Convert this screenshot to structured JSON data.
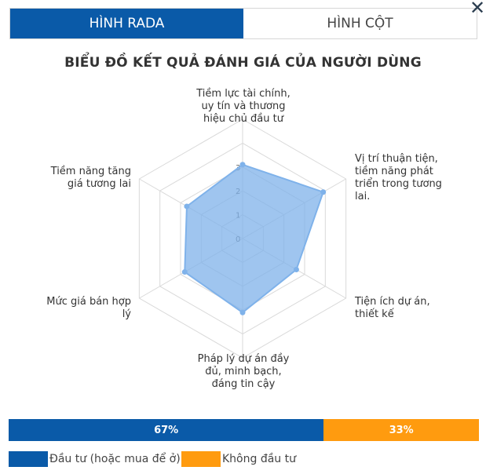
{
  "tabs": [
    {
      "label": "HÌNH RADA",
      "active": true
    },
    {
      "label": "HÌNH CỘT",
      "active": false
    }
  ],
  "close_icon": "close-icon",
  "chart_data": [
    {
      "type": "radar",
      "title": "BIỂU ĐỒ KẾT QUẢ ĐÁNH GIÁ CỦA NGƯỜI DÙNG",
      "categories": [
        "Tiềm lực tài chính, uy tín và thương hiệu chủ đầu tư",
        "Vị trí thuận tiện, tiềm năng phát triển trong tương lai.",
        "Tiện ích dự án, thiết kế",
        "Pháp lý dự án đầy đủ, minh bạch, đáng tin cậy",
        "Mức giá bán hợp lý",
        "Tiềm năng tăng giá tương lai"
      ],
      "values": [
        3.1,
        3.9,
        2.6,
        3.1,
        2.8,
        2.7
      ],
      "rmax": 5,
      "ticks": [
        0,
        1,
        2,
        3
      ],
      "color": "#7fb2ea"
    },
    {
      "type": "bar",
      "orientation": "stacked-horizontal",
      "series": [
        {
          "name": "Đầu tư (hoặc mua để ở)",
          "value": 67,
          "label": "67%",
          "color": "#0a5aa8"
        },
        {
          "name": "Không đầu tư",
          "value": 33,
          "label": "33%",
          "color": "#ff9b0f"
        }
      ]
    }
  ]
}
